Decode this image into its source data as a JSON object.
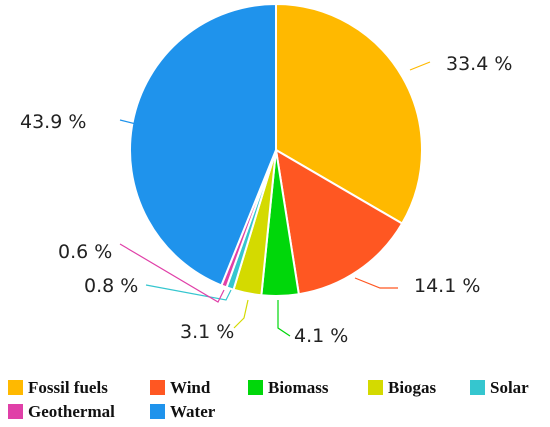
{
  "chart_data": {
    "type": "pie",
    "slices": [
      {
        "name": "Fossil fuels",
        "value": 33.4,
        "label": "33.4 %",
        "color": "#FFB900"
      },
      {
        "name": "Wind",
        "value": 14.1,
        "label": "14.1 %",
        "color": "#FF5722"
      },
      {
        "name": "Biomass",
        "value": 4.1,
        "label": "4.1 %",
        "color": "#00D70A"
      },
      {
        "name": "Biogas",
        "value": 3.1,
        "label": "3.1 %",
        "color": "#D4DA00"
      },
      {
        "name": "Solar",
        "value": 0.8,
        "label": "0.8 %",
        "color": "#35C6CF"
      },
      {
        "name": "Geothermal",
        "value": 0.6,
        "label": "0.6 %",
        "color": "#E040A8"
      },
      {
        "name": "Water",
        "value": 43.9,
        "label": "43.9 %",
        "color": "#1F93EC"
      }
    ],
    "legend_position": "bottom",
    "start_angle": "top, clockwise"
  }
}
